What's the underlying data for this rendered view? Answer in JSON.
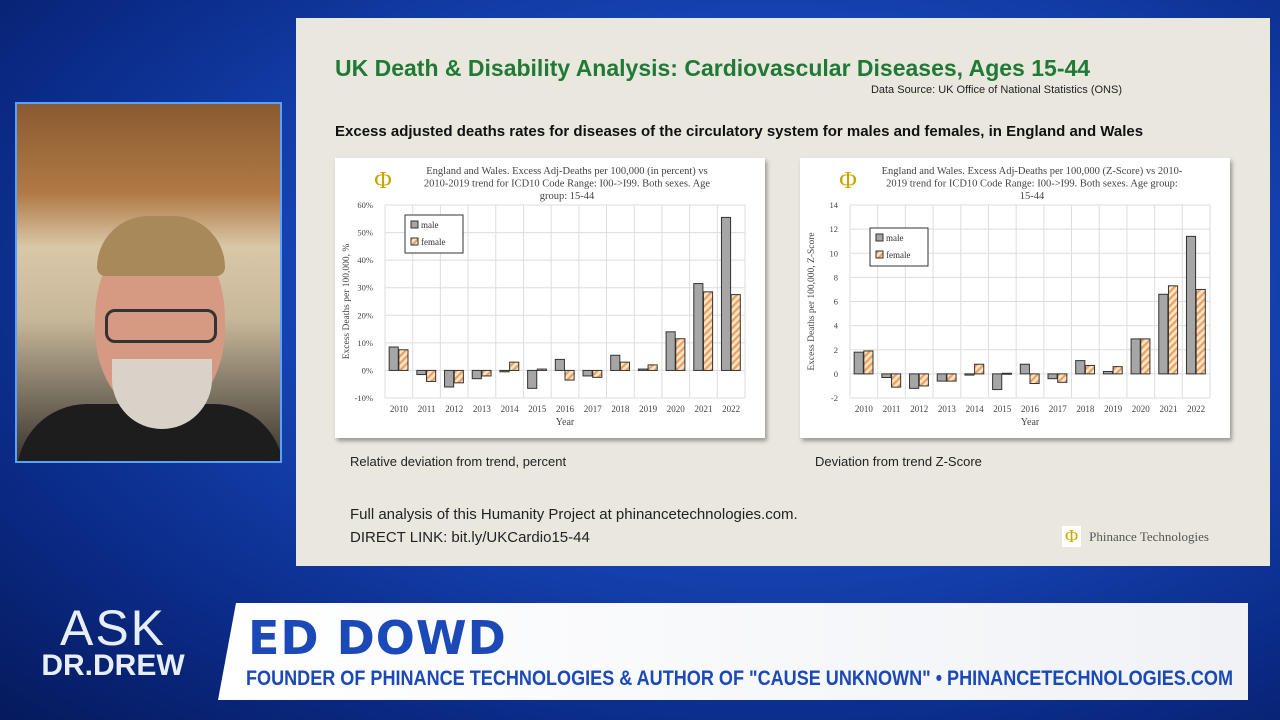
{
  "slide": {
    "title": "UK Death & Disability Analysis: Cardiovascular Diseases, Ages 15-44",
    "source": "Data Source: UK Office of National Statistics (ONS)",
    "subtitle": "Excess adjusted deaths rates for diseases of the circulatory system for males and females, in England and Wales",
    "caption_left": "Relative deviation from trend, percent",
    "caption_right": "Deviation from trend Z-Score",
    "footer_line1": "Full analysis of this Humanity Project at phinancetechnologies.com.",
    "footer_line2": "DIRECT LINK: bit.ly/UKCardio15-44",
    "logo_text": "Phinance Technologies"
  },
  "banner": {
    "show": "ASK",
    "show2": "DR.DREW",
    "name": "ED DOWD",
    "role": "FOUNDER OF PHINANCE TECHNOLOGIES & AUTHOR OF \"CAUSE UNKNOWN\" • PHINANCETECHNOLOGIES.COM"
  },
  "colors": {
    "male": "#a6a6a6",
    "female": "#f6c99a",
    "title": "#1f7a35",
    "banner_text": "#1b49b8"
  },
  "chart_data": [
    {
      "type": "bar",
      "title": [
        "England and Wales. Excess Adj-Deaths per 100,000 (in percent) vs",
        "2010-2019 trend for ICD10 Code Range: I00->I99. Both sexes. Age",
        "group: 15-44"
      ],
      "xlabel": "Year",
      "ylabel": "Excess Deaths per 100,000, %",
      "ylim": [
        -10,
        60
      ],
      "yticks": [
        -10,
        0,
        10,
        20,
        30,
        40,
        50,
        60
      ],
      "ytick_suffix": "%",
      "grid": true,
      "legend": "top-left",
      "categories": [
        "2010",
        "2011",
        "2012",
        "2013",
        "2014",
        "2015",
        "2016",
        "2017",
        "2018",
        "2019",
        "2020",
        "2021",
        "2022"
      ],
      "series": [
        {
          "name": "male",
          "values": [
            8.5,
            -1.5,
            -6,
            -3,
            -0.5,
            -6.5,
            4,
            -2,
            5.5,
            0.5,
            14,
            31.5,
            55.5
          ]
        },
        {
          "name": "female",
          "values": [
            7.5,
            -4,
            -4.5,
            -2,
            3,
            0.5,
            -3.5,
            -2.5,
            3,
            2,
            11.5,
            28.5,
            27.5
          ]
        }
      ]
    },
    {
      "type": "bar",
      "title": [
        "England and Wales. Excess Adj-Deaths per 100,000 (Z-Score) vs 2010-",
        "2019 trend for ICD10 Code Range: I00->I99. Both sexes. Age group:",
        "15-44"
      ],
      "xlabel": "Year",
      "ylabel": "Excess Deaths per 100,000, Z-Score",
      "ylim": [
        -2,
        14
      ],
      "yticks": [
        -2,
        0,
        2,
        4,
        6,
        8,
        10,
        12,
        14
      ],
      "ytick_suffix": "",
      "grid": true,
      "legend": "top-left",
      "categories": [
        "2010",
        "2011",
        "2012",
        "2013",
        "2014",
        "2015",
        "2016",
        "2017",
        "2018",
        "2019",
        "2020",
        "2021",
        "2022"
      ],
      "series": [
        {
          "name": "male",
          "values": [
            1.8,
            -0.3,
            -1.2,
            -0.6,
            -0.1,
            -1.3,
            0.8,
            -0.4,
            1.1,
            0.2,
            2.9,
            6.6,
            11.4
          ]
        },
        {
          "name": "female",
          "values": [
            1.9,
            -1.1,
            -1.0,
            -0.6,
            0.8,
            0.05,
            -0.8,
            -0.7,
            0.7,
            0.6,
            2.9,
            7.3,
            7.0
          ]
        }
      ]
    }
  ]
}
